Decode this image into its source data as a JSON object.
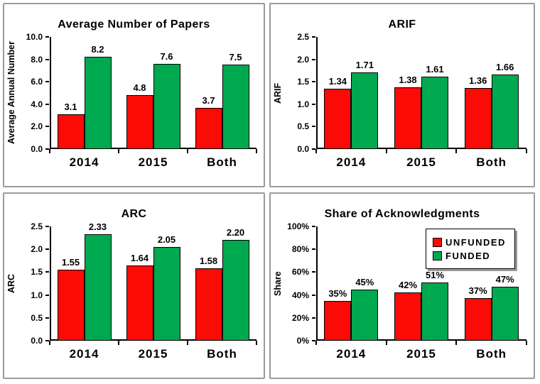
{
  "colors": {
    "unfunded_red": "#FB0B05",
    "funded_green": "#00A84F",
    "axis_black": "#000000",
    "panel_border_gray": "#9B9BA0",
    "background": "#FFFFFF"
  },
  "legend": {
    "position": "top-right",
    "items": [
      {
        "label": "UNFUNDED",
        "color": "#FB0B05"
      },
      {
        "label": "FUNDED",
        "color": "#00A84F"
      }
    ]
  },
  "chart_data": [
    {
      "type": "bar",
      "title": "Average Number of Papers",
      "ylabel": "Average Annual Number",
      "xlabel": "",
      "categories": [
        "2014",
        "2015",
        "Both"
      ],
      "ylim": [
        0,
        10
      ],
      "yticks": [
        "10.0",
        "8.0",
        "6.0",
        "4.0",
        "2.0",
        "0.0"
      ],
      "grid": false,
      "legend": false,
      "series": [
        {
          "name": "UNFUNDED",
          "color": "#FB0B05",
          "values": [
            3.1,
            4.8,
            3.7
          ],
          "labels": [
            "3.1",
            "4.8",
            "3.7"
          ]
        },
        {
          "name": "FUNDED",
          "color": "#00A84F",
          "values": [
            8.2,
            7.6,
            7.5
          ],
          "labels": [
            "8.2",
            "7.6",
            "7.5"
          ]
        }
      ]
    },
    {
      "type": "bar",
      "title": "ARIF",
      "ylabel": "ARIF",
      "xlabel": "",
      "categories": [
        "2014",
        "2015",
        "Both"
      ],
      "ylim": [
        0,
        2.5
      ],
      "yticks": [
        "2.5",
        "2.0",
        "1.5",
        "1.0",
        "0.5",
        "0.0"
      ],
      "grid": false,
      "legend": false,
      "series": [
        {
          "name": "UNFUNDED",
          "color": "#FB0B05",
          "values": [
            1.34,
            1.38,
            1.36
          ],
          "labels": [
            "1.34",
            "1.38",
            "1.36"
          ]
        },
        {
          "name": "FUNDED",
          "color": "#00A84F",
          "values": [
            1.71,
            1.61,
            1.66
          ],
          "labels": [
            "1.71",
            "1.61",
            "1.66"
          ]
        }
      ]
    },
    {
      "type": "bar",
      "title": "ARC",
      "ylabel": "ARC",
      "xlabel": "",
      "categories": [
        "2014",
        "2015",
        "Both"
      ],
      "ylim": [
        0,
        2.5
      ],
      "yticks": [
        "2.5",
        "2.0",
        "1.5",
        "1.0",
        "0.5",
        "0.0"
      ],
      "grid": false,
      "legend": false,
      "series": [
        {
          "name": "UNFUNDED",
          "color": "#FB0B05",
          "values": [
            1.55,
            1.64,
            1.58
          ],
          "labels": [
            "1.55",
            "1.64",
            "1.58"
          ]
        },
        {
          "name": "FUNDED",
          "color": "#00A84F",
          "values": [
            2.33,
            2.05,
            2.2
          ],
          "labels": [
            "2.33",
            "2.05",
            "2.20"
          ]
        }
      ]
    },
    {
      "type": "bar",
      "title": "Share of Acknowledgments",
      "ylabel": "Share",
      "xlabel": "",
      "categories": [
        "2014",
        "2015",
        "Both"
      ],
      "ylim": [
        0,
        100
      ],
      "yticks": [
        "100%",
        "80%",
        "60%",
        "40%",
        "20%",
        "0%"
      ],
      "grid": false,
      "legend": true,
      "legend_position": "top-right",
      "series": [
        {
          "name": "UNFUNDED",
          "color": "#FB0B05",
          "values": [
            35,
            42,
            37
          ],
          "labels": [
            "35%",
            "42%",
            "37%"
          ]
        },
        {
          "name": "FUNDED",
          "color": "#00A84F",
          "values": [
            45,
            51,
            47
          ],
          "labels": [
            "45%",
            "51%",
            "47%"
          ]
        }
      ]
    }
  ]
}
